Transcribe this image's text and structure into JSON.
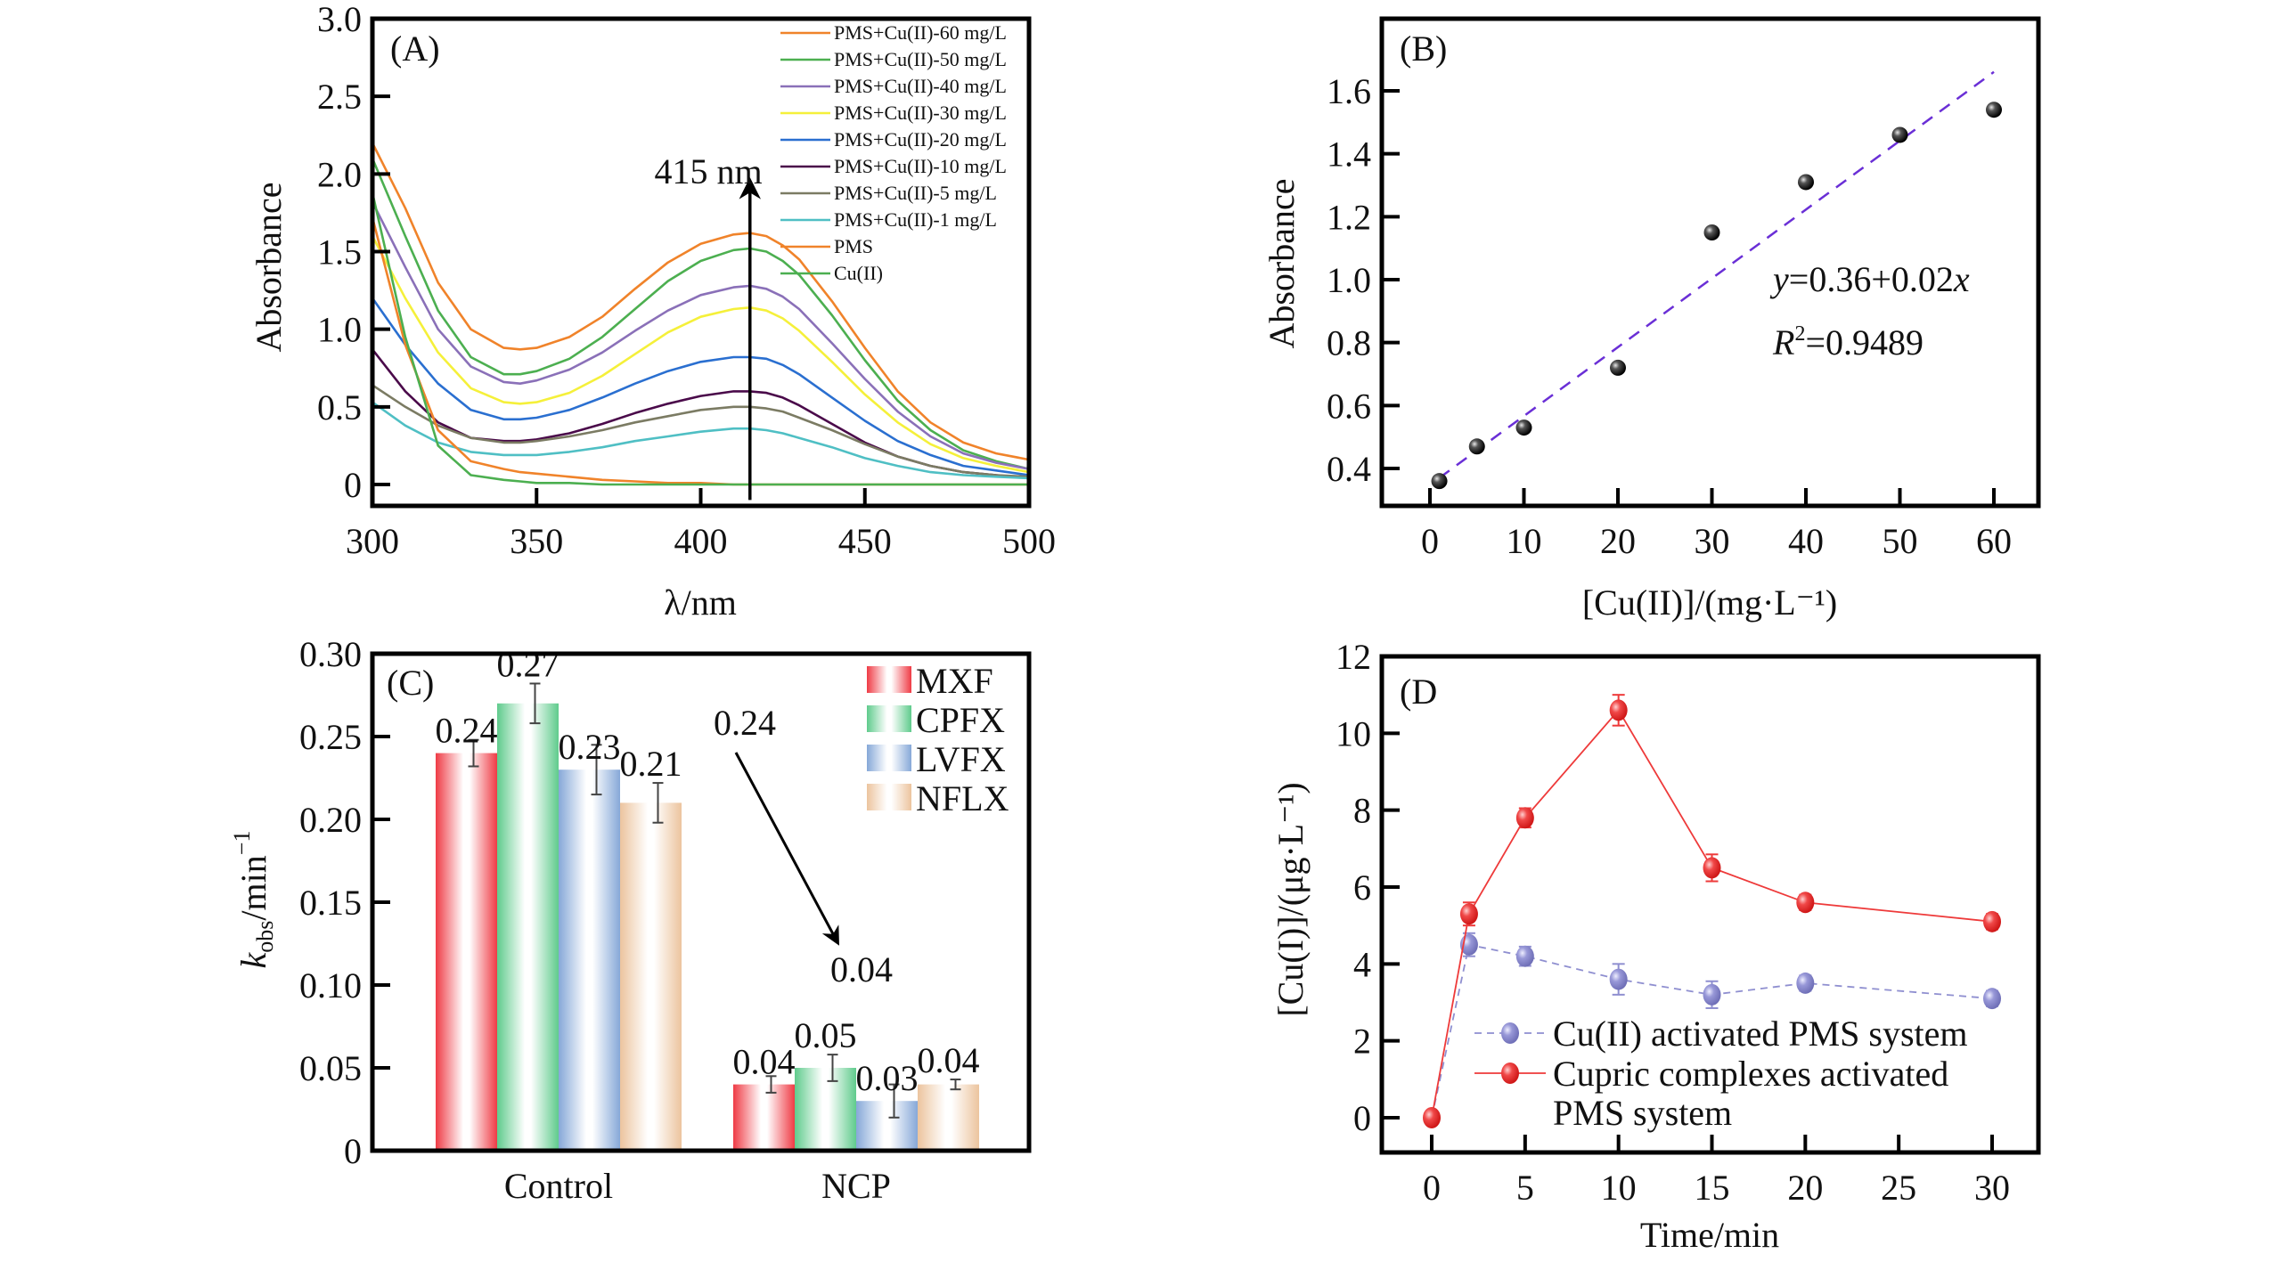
{
  "figure": {
    "panels": [
      "A",
      "B",
      "C",
      "D"
    ]
  },
  "chart_data": [
    {
      "id": "A",
      "type": "line",
      "panel_label": "(A)",
      "xlabel": "λ/nm",
      "ylabel": "Absorbance",
      "xlim": [
        300,
        500
      ],
      "ylim": [
        -0.15,
        3.0
      ],
      "xticks": [
        300,
        350,
        400,
        450,
        500
      ],
      "xtick_labels": [
        "300",
        "350",
        "400",
        "450",
        "500"
      ],
      "yticks": [
        0,
        0.5,
        1.0,
        1.5,
        2.0,
        2.5,
        3.0
      ],
      "ytick_labels": [
        "0",
        "0.5",
        "1.0",
        "1.5",
        "2.0",
        "2.5",
        "3.0"
      ],
      "legend_position": "top-right",
      "annotation": {
        "text": "415 nm",
        "x": 415,
        "arrow_from": -0.1,
        "arrow_to": 1.95
      },
      "x": [
        300,
        310,
        320,
        330,
        340,
        345,
        350,
        360,
        370,
        380,
        390,
        400,
        410,
        415,
        420,
        425,
        430,
        440,
        450,
        460,
        470,
        480,
        490,
        500
      ],
      "series": [
        {
          "name": "PMS+Cu(II)-60 mg/L",
          "color": "#f0832a",
          "values": [
            2.2,
            1.78,
            1.3,
            1.0,
            0.88,
            0.87,
            0.88,
            0.95,
            1.08,
            1.26,
            1.43,
            1.55,
            1.61,
            1.62,
            1.6,
            1.54,
            1.45,
            1.18,
            0.88,
            0.6,
            0.4,
            0.27,
            0.2,
            0.16
          ]
        },
        {
          "name": "PMS+Cu(II)-50 mg/L",
          "color": "#4caf50",
          "values": [
            2.1,
            1.6,
            1.12,
            0.82,
            0.71,
            0.71,
            0.73,
            0.81,
            0.95,
            1.13,
            1.31,
            1.44,
            1.51,
            1.52,
            1.5,
            1.44,
            1.35,
            1.09,
            0.8,
            0.54,
            0.35,
            0.22,
            0.15,
            0.1
          ]
        },
        {
          "name": "PMS+Cu(II)-40 mg/L",
          "color": "#8a70b8",
          "values": [
            1.82,
            1.4,
            1.0,
            0.76,
            0.66,
            0.65,
            0.67,
            0.74,
            0.85,
            0.99,
            1.12,
            1.22,
            1.27,
            1.28,
            1.26,
            1.21,
            1.13,
            0.91,
            0.68,
            0.47,
            0.31,
            0.2,
            0.14,
            0.1
          ]
        },
        {
          "name": "PMS+Cu(II)-30 mg/L",
          "color": "#f5f03a",
          "values": [
            1.6,
            1.2,
            0.85,
            0.62,
            0.53,
            0.52,
            0.53,
            0.59,
            0.7,
            0.84,
            0.98,
            1.08,
            1.13,
            1.14,
            1.12,
            1.07,
            0.99,
            0.79,
            0.58,
            0.4,
            0.26,
            0.17,
            0.12,
            0.08
          ]
        },
        {
          "name": "PMS+Cu(II)-20 mg/L",
          "color": "#2a6fd0",
          "values": [
            1.2,
            0.9,
            0.65,
            0.48,
            0.42,
            0.42,
            0.43,
            0.48,
            0.56,
            0.65,
            0.73,
            0.79,
            0.82,
            0.82,
            0.81,
            0.77,
            0.71,
            0.56,
            0.41,
            0.28,
            0.19,
            0.12,
            0.09,
            0.06
          ]
        },
        {
          "name": "PMS+Cu(II)-10 mg/L",
          "color": "#4a0a4a",
          "values": [
            0.87,
            0.6,
            0.4,
            0.3,
            0.28,
            0.28,
            0.29,
            0.33,
            0.39,
            0.46,
            0.52,
            0.57,
            0.6,
            0.6,
            0.59,
            0.56,
            0.51,
            0.39,
            0.27,
            0.18,
            0.12,
            0.08,
            0.06,
            0.04
          ]
        },
        {
          "name": "PMS+Cu(II)-5 mg/L",
          "color": "#7b7b63",
          "values": [
            0.64,
            0.5,
            0.38,
            0.3,
            0.27,
            0.27,
            0.28,
            0.31,
            0.35,
            0.4,
            0.44,
            0.48,
            0.5,
            0.5,
            0.49,
            0.47,
            0.43,
            0.35,
            0.26,
            0.18,
            0.12,
            0.08,
            0.06,
            0.05
          ]
        },
        {
          "name": "PMS+Cu(II)-1 mg/L",
          "color": "#4fbfc4",
          "values": [
            0.53,
            0.38,
            0.27,
            0.21,
            0.19,
            0.19,
            0.19,
            0.21,
            0.24,
            0.28,
            0.31,
            0.34,
            0.36,
            0.36,
            0.35,
            0.33,
            0.3,
            0.24,
            0.17,
            0.12,
            0.08,
            0.06,
            0.05,
            0.04
          ]
        },
        {
          "name": "PMS",
          "color": "#f0832a",
          "values": [
            1.72,
            0.9,
            0.35,
            0.15,
            0.1,
            0.08,
            0.07,
            0.05,
            0.03,
            0.02,
            0.01,
            0.01,
            0.0,
            0.0,
            0.0,
            0.0,
            0.0,
            0.0,
            0.0,
            0.0,
            0.0,
            0.0,
            0.0,
            0.0
          ]
        },
        {
          "name": "Cu(II)",
          "color": "#4caf50",
          "values": [
            1.88,
            0.95,
            0.25,
            0.06,
            0.03,
            0.02,
            0.01,
            0.01,
            0.0,
            0.0,
            0.0,
            0.0,
            0.0,
            0.0,
            0.0,
            0.0,
            0.0,
            0.0,
            0.0,
            0.0,
            0.0,
            0.0,
            0.0,
            0.0
          ]
        }
      ]
    },
    {
      "id": "B",
      "type": "scatter",
      "panel_label": "(B)",
      "xlabel": "[Cu(II)]/(mg·L⁻¹)",
      "ylabel": "Absorbance",
      "xlim": [
        -4,
        65
      ],
      "ylim": [
        0.3,
        1.7
      ],
      "xticks": [
        0,
        10,
        20,
        30,
        40,
        50,
        60
      ],
      "xtick_labels": [
        "0",
        "10",
        "20",
        "30",
        "40",
        "50",
        "60"
      ],
      "yticks": [
        0.4,
        0.6,
        0.8,
        1.0,
        1.2,
        1.4,
        1.6
      ],
      "ytick_labels": [
        "0.4",
        "0.6",
        "0.8",
        "1.0",
        "1.2",
        "1.4",
        "1.6"
      ],
      "x": [
        1,
        5,
        10,
        20,
        30,
        40,
        50,
        60
      ],
      "y": [
        0.36,
        0.47,
        0.53,
        0.72,
        1.15,
        1.31,
        1.46,
        1.54
      ],
      "fit": {
        "intercept": 0.36,
        "slope": 0.02,
        "x_range": [
          1,
          60
        ],
        "y_range": [
          0.37,
          1.66
        ],
        "color": "#6a2fd6",
        "style": "dashed"
      },
      "equation_y": "y",
      "equation_rest": "=0.36+0.02",
      "equation_x": "x",
      "r2_R": "R",
      "r2_sup": "2",
      "r2_value": "=0.9489"
    },
    {
      "id": "C",
      "type": "bar",
      "panel_label": "(C)",
      "xlabel": "",
      "ylabel_k": "k",
      "ylabel_sub": "obs",
      "ylabel_rest": "/min",
      "ylabel_sup": "−1",
      "ylim": [
        0,
        0.3
      ],
      "yticks": [
        0,
        0.05,
        0.1,
        0.15,
        0.2,
        0.25,
        0.3
      ],
      "ytick_labels": [
        "0",
        "0.05",
        "0.10",
        "0.15",
        "0.20",
        "0.25",
        "0.30"
      ],
      "categories": [
        "Control",
        "NCP"
      ],
      "legend_position": "top-right",
      "series": [
        {
          "name": "MXF",
          "color": "#ef3b45",
          "values": [
            0.24,
            0.04
          ],
          "errors": [
            0.008,
            0.005
          ],
          "labels": [
            "0.24",
            "0.04"
          ]
        },
        {
          "name": "CPFX",
          "color": "#5fcb8c",
          "values": [
            0.27,
            0.05
          ],
          "errors": [
            0.012,
            0.008
          ],
          "labels": [
            "0.27",
            "0.05"
          ]
        },
        {
          "name": "LVFX",
          "color": "#86a8d8",
          "values": [
            0.23,
            0.03
          ],
          "errors": [
            0.015,
            0.01
          ],
          "labels": [
            "0.23",
            "0.03"
          ]
        },
        {
          "name": "NFLX",
          "color": "#ecc49e",
          "values": [
            0.21,
            0.04
          ],
          "errors": [
            0.012,
            0.003
          ],
          "labels": [
            "0.21",
            "0.04"
          ]
        }
      ],
      "annotation": {
        "from_label": "0.24",
        "to_label": "0.04"
      }
    },
    {
      "id": "D",
      "type": "line",
      "panel_label": "(D",
      "xlabel": "Time/min",
      "ylabel": "[Cu(I)]/(μg·L⁻¹)",
      "xlim": [
        -2.5,
        32.5
      ],
      "ylim": [
        -1,
        12
      ],
      "xticks": [
        0,
        5,
        10,
        15,
        20,
        25,
        30
      ],
      "xtick_labels": [
        "0",
        "5",
        "10",
        "15",
        "20",
        "25",
        "30"
      ],
      "yticks": [
        0,
        2,
        4,
        6,
        8,
        10,
        12
      ],
      "ytick_labels": [
        "0",
        "2",
        "4",
        "6",
        "8",
        "10",
        "12"
      ],
      "legend_position": "bottom-center",
      "x": [
        0,
        2,
        5,
        10,
        15,
        20,
        30
      ],
      "series": [
        {
          "name": "Cu(II) activated PMS system",
          "color": "#8f8fd0",
          "line_style": "dashed",
          "values": [
            0,
            4.5,
            4.2,
            3.6,
            3.2,
            3.5,
            3.1
          ],
          "errors": [
            0,
            0.3,
            0.25,
            0.4,
            0.35,
            0.2,
            0.2
          ]
        },
        {
          "name": "Cupric complexes activated PMS system",
          "name_line1": "Cupric complexes activated",
          "name_line2": "PMS system",
          "color": "#ee3a3a",
          "line_style": "solid",
          "values": [
            0,
            5.3,
            7.8,
            10.6,
            6.5,
            5.6,
            5.1
          ],
          "errors": [
            0,
            0.3,
            0.25,
            0.4,
            0.35,
            0.2,
            0.2
          ]
        }
      ]
    }
  ]
}
